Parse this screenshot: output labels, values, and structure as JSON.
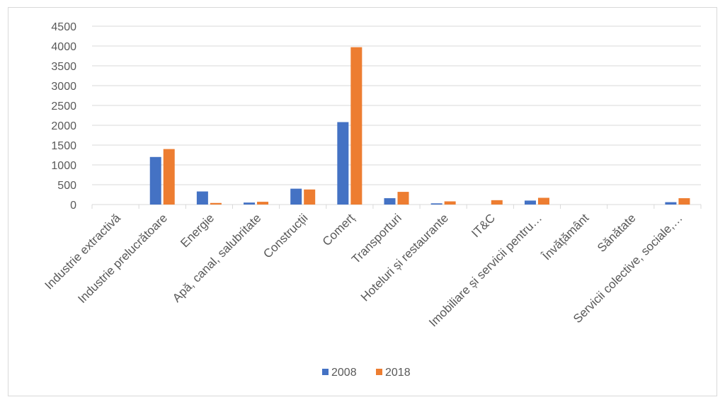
{
  "chart_data": {
    "type": "bar",
    "title": "",
    "xlabel": "",
    "ylabel": "",
    "ylim": [
      0,
      4500
    ],
    "yticks": [
      "0",
      "500",
      "1000",
      "1500",
      "2000",
      "2500",
      "3000",
      "3500",
      "4000",
      "4500"
    ],
    "grid": true,
    "legend_position": "bottom",
    "categories": [
      "Industrie extractivă",
      "Industrie prelucrătoare",
      "Energie",
      "Apă, canal, salubritate",
      "Construcții",
      "Comerț",
      "Transporturi",
      "Hoteluri și restaurante",
      "IT&C",
      "Imobiliare și servicii pentru…",
      "Învățământ",
      "Sănătate",
      "Servicii colective, sociale,…"
    ],
    "series": [
      {
        "name": "2008",
        "color": "#4472c4",
        "values": [
          0,
          1200,
          330,
          50,
          400,
          2080,
          160,
          30,
          0,
          100,
          0,
          0,
          60
        ]
      },
      {
        "name": "2018",
        "color": "#ed7d31",
        "values": [
          0,
          1400,
          40,
          70,
          380,
          3970,
          320,
          80,
          110,
          170,
          0,
          0,
          160
        ]
      }
    ]
  }
}
